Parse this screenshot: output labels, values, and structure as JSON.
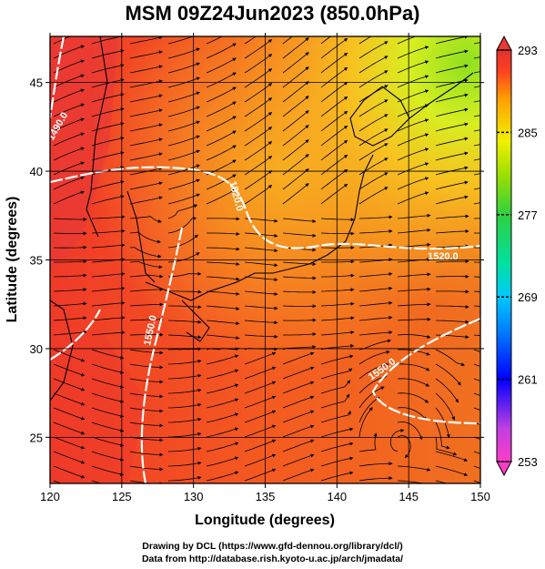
{
  "title": "MSM 09Z24Jun2023 (850.0hPa)",
  "axes": {
    "xlabel": "Longitude (degrees)",
    "ylabel": "Latitude  (degrees)",
    "xticks": [
      "120",
      "125",
      "130",
      "135",
      "140",
      "145",
      "150"
    ],
    "yticks": [
      "25",
      "30",
      "35",
      "40",
      "45"
    ],
    "xlim": [
      120,
      150
    ],
    "ylim": [
      22.4,
      47.6
    ]
  },
  "colorbar": {
    "ticks": [
      "293",
      "285",
      "277",
      "269",
      "261",
      "253"
    ],
    "range": [
      253,
      293
    ],
    "colors": [
      "#ff3cc8",
      "#0000ff",
      "#00c8ff",
      "#00e0a0",
      "#30d040",
      "#a0e000",
      "#f0f000",
      "#ffa000",
      "#ff4020",
      "#e03030"
    ]
  },
  "contours": [
    {
      "label": "1490.0"
    },
    {
      "label": "1520.0"
    },
    {
      "label": "1520.0"
    },
    {
      "label": "1550.0"
    },
    {
      "label": "1550.0"
    }
  ],
  "footer": {
    "line1": "Drawing by DCL (https://www.gfd-dennou.org/library/dcl/)",
    "line2": "Data from http://database.rish.kyoto-u.ac.jp/arch/jmadata/"
  }
}
